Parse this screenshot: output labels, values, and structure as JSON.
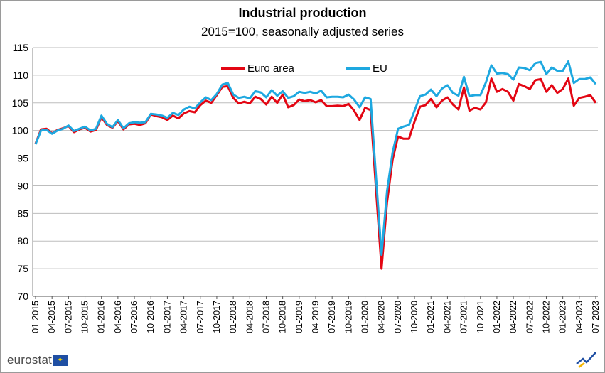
{
  "chart_data": {
    "type": "line",
    "title": "Industrial production",
    "subtitle": "2015=100, seasonally adjusted series",
    "ylim": [
      70,
      115
    ],
    "yticks": [
      70,
      75,
      80,
      85,
      90,
      95,
      100,
      105,
      110,
      115
    ],
    "grid": "horizontal",
    "legend_position": "top-center",
    "xtick_labels": [
      "01-2015",
      "04-2015",
      "07-2015",
      "10-2015",
      "01-2016",
      "04-2016",
      "07-2016",
      "10-2016",
      "01-2017",
      "04-2017",
      "07-2017",
      "10-2017",
      "01-2018",
      "04-2018",
      "07-2018",
      "10-2018",
      "01-2019",
      "04-2019",
      "07-2019",
      "10-2019",
      "01-2020",
      "04-2020",
      "07-2020",
      "10-2020",
      "01-2021",
      "04-2021",
      "07-2021",
      "10-2021",
      "01-2022",
      "04-2022",
      "07-2022",
      "10-2022",
      "01-2023",
      "04-2023",
      "07-2023"
    ],
    "months_count": 103,
    "series": [
      {
        "name": "Euro area",
        "color": "#e30613",
        "values": [
          97.6,
          100.2,
          100.3,
          99.5,
          100.1,
          100.4,
          100.8,
          99.7,
          100.2,
          100.5,
          99.8,
          100.1,
          102.4,
          101.0,
          100.5,
          101.7,
          100.2,
          101.1,
          101.2,
          101.0,
          101.3,
          102.9,
          102.6,
          102.4,
          101.9,
          102.7,
          102.2,
          103.1,
          103.5,
          103.3,
          104.6,
          105.4,
          105.0,
          106.4,
          107.9,
          108.0,
          105.9,
          104.9,
          105.2,
          104.9,
          106.1,
          105.7,
          104.7,
          106.1,
          105.0,
          106.5,
          104.2,
          104.6,
          105.6,
          105.3,
          105.5,
          105.1,
          105.5,
          104.4,
          104.4,
          104.5,
          104.4,
          104.8,
          103.6,
          101.9,
          104.1,
          103.7,
          89.2,
          75.0,
          87.0,
          94.7,
          98.9,
          98.5,
          98.5,
          101.6,
          104.3,
          104.6,
          105.7,
          104.2,
          105.4,
          106.0,
          104.7,
          103.8,
          107.8,
          103.6,
          104.1,
          103.8,
          105.1,
          109.4,
          107.0,
          107.5,
          107.0,
          105.4,
          108.4,
          108.0,
          107.5,
          109.1,
          109.3,
          107.0,
          108.2,
          106.8,
          107.5,
          109.4,
          104.5,
          105.9,
          106.1,
          106.4,
          105.0
        ]
      },
      {
        "name": "EU",
        "color": "#1ea8e0",
        "values": [
          97.5,
          100.0,
          100.1,
          99.4,
          100.0,
          100.3,
          100.9,
          99.9,
          100.3,
          100.7,
          100.0,
          100.3,
          102.7,
          101.2,
          100.6,
          101.9,
          100.4,
          101.3,
          101.5,
          101.4,
          101.5,
          103.0,
          102.9,
          102.7,
          102.3,
          103.2,
          102.8,
          103.8,
          104.3,
          104.0,
          105.1,
          106.0,
          105.5,
          106.6,
          108.3,
          108.6,
          106.5,
          105.9,
          106.1,
          105.8,
          107.1,
          106.9,
          106.0,
          107.3,
          106.3,
          107.1,
          105.9,
          106.2,
          107.0,
          106.8,
          107.0,
          106.7,
          107.2,
          106.0,
          106.1,
          106.1,
          106.0,
          106.5,
          105.6,
          104.2,
          106.0,
          105.7,
          91.5,
          77.5,
          89.0,
          96.0,
          100.3,
          100.7,
          101.0,
          103.6,
          106.2,
          106.5,
          107.4,
          106.2,
          107.6,
          108.2,
          106.8,
          106.3,
          109.7,
          106.2,
          106.4,
          106.4,
          108.7,
          111.8,
          110.3,
          110.4,
          110.2,
          109.2,
          111.4,
          111.3,
          110.9,
          112.2,
          112.4,
          110.2,
          111.4,
          110.8,
          110.8,
          112.5,
          108.6,
          109.3,
          109.3,
          109.6,
          108.4
        ]
      }
    ]
  },
  "logo": {
    "text": "eurostat",
    "mark": "EU flag"
  }
}
